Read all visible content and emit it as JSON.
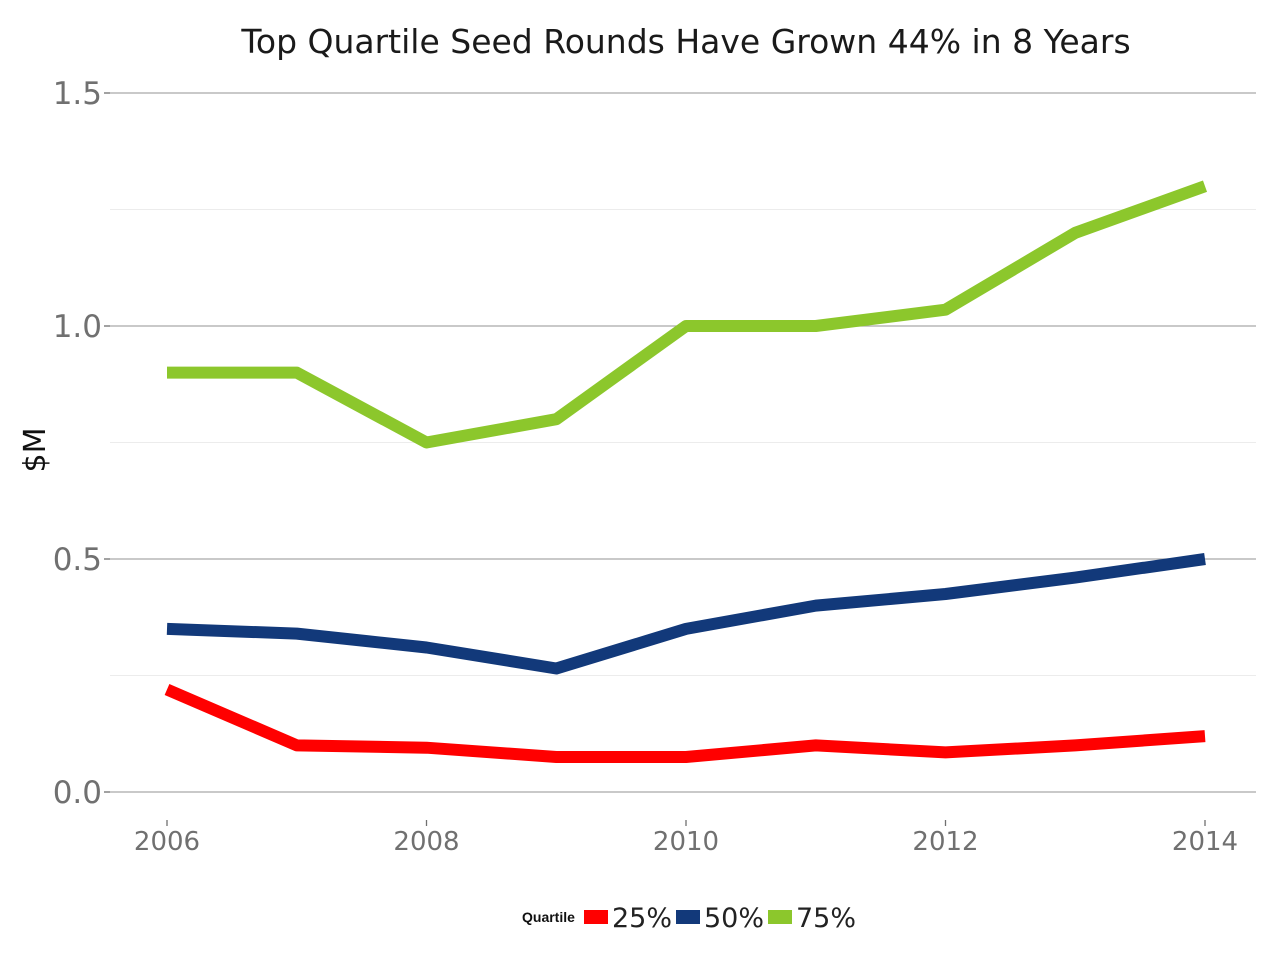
{
  "chart_data": {
    "type": "line",
    "title": "Top Quartile Seed Rounds Have Grown 44% in 8 Years",
    "xlabel": "",
    "ylabel": "$M",
    "x": [
      2006,
      2007,
      2008,
      2009,
      2010,
      2011,
      2012,
      2013,
      2014
    ],
    "xticks": [
      2006,
      2008,
      2010,
      2012,
      2014
    ],
    "xtick_labels": [
      "2006",
      "2008",
      "2010",
      "2012",
      "2014"
    ],
    "yticks": [
      0,
      0.5,
      1.0,
      1.5
    ],
    "ytick_labels": [
      "0.0",
      "0.5",
      "1.0",
      "1.5"
    ],
    "xlim": [
      2006,
      2014
    ],
    "ylim": [
      0,
      1.5
    ],
    "grid": true,
    "legend": {
      "title": "Quartile",
      "position": "bottom"
    },
    "series": [
      {
        "name": "25%",
        "color": "#ff0000",
        "values": [
          0.22,
          0.1,
          0.095,
          0.075,
          0.075,
          0.1,
          0.085,
          0.1,
          0.12
        ]
      },
      {
        "name": "50%",
        "color": "#12397a",
        "values": [
          0.35,
          0.34,
          0.31,
          0.265,
          0.35,
          0.4,
          0.425,
          0.46,
          0.5
        ]
      },
      {
        "name": "75%",
        "color": "#8cc72c",
        "values": [
          0.9,
          0.9,
          0.75,
          0.8,
          1.0,
          1.0,
          1.035,
          1.2,
          1.3
        ]
      }
    ]
  }
}
